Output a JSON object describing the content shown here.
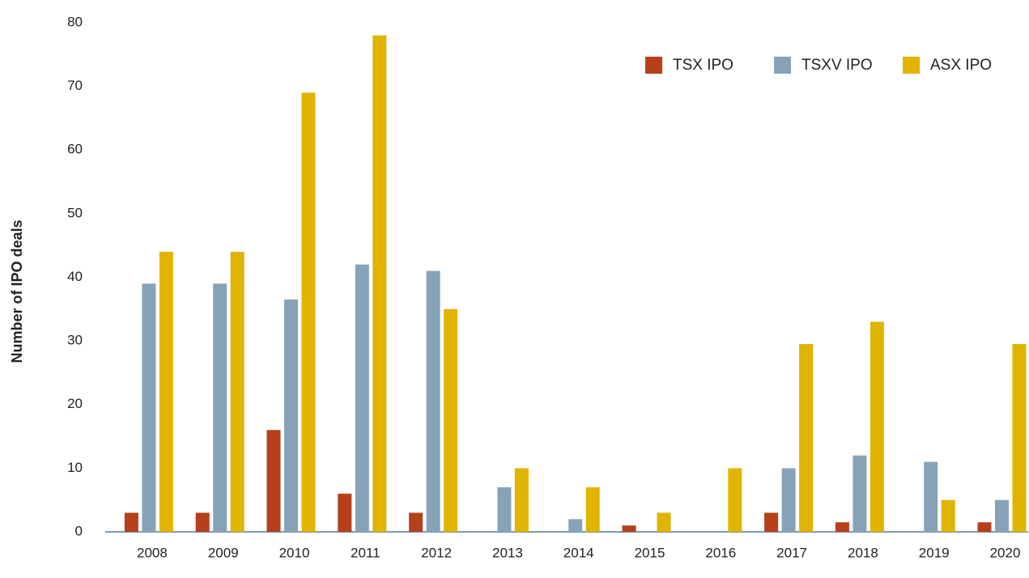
{
  "chart_data": {
    "type": "bar",
    "y_label": "Number of IPO deals",
    "categories": [
      "2008",
      "2009",
      "2010",
      "2011",
      "2012",
      "2013",
      "2014",
      "2015",
      "2016",
      "2017",
      "2018",
      "2019",
      "2020"
    ],
    "series": [
      {
        "name": "TSX IPO",
        "color": "#b5401a",
        "values": [
          3,
          3,
          16,
          6,
          3,
          0,
          0,
          1,
          0,
          3,
          1.5,
          0,
          1.5
        ]
      },
      {
        "name": "TSXV IPO",
        "color": "#87a3b8",
        "values": [
          39,
          39,
          36.5,
          42,
          41,
          7,
          2,
          0,
          0,
          10,
          12,
          11,
          5
        ]
      },
      {
        "name": "ASX IPO",
        "color": "#e0b400",
        "values": [
          44,
          44,
          69,
          78,
          35,
          10,
          7,
          3,
          10,
          29.5,
          33,
          5,
          29.5
        ]
      }
    ],
    "ylim": [
      0,
      80
    ],
    "yticks": [
      0,
      10,
      20,
      30,
      40,
      50,
      60,
      70,
      80
    ],
    "grid": false,
    "legend": "top-right"
  }
}
